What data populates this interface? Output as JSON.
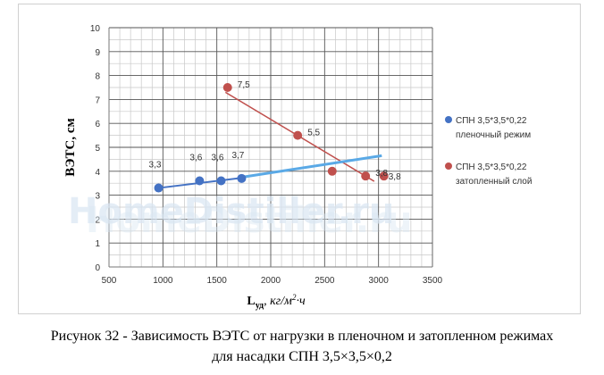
{
  "chart_data": {
    "type": "scatter",
    "xlim": [
      500,
      3500
    ],
    "ylim": [
      0,
      10
    ],
    "x_ticks": [
      "500",
      "1000",
      "1500",
      "2000",
      "2500",
      "3000",
      "3500"
    ],
    "y_ticks": [
      "0",
      "1",
      "2",
      "3",
      "4",
      "5",
      "6",
      "7",
      "8",
      "9",
      "10"
    ],
    "x_tick_step": 100,
    "y_tick_step": 0.5,
    "ylabel": "ВЭТС, см",
    "xlabel_main": "L",
    "xlabel_sub": "уд",
    "xlabel_unit": ", кг/м",
    "xlabel_sup": "2",
    "xlabel_tail": "·ч",
    "grid": true,
    "legend_position": "right",
    "series": [
      {
        "name": "СПН 3,5*3,5*0,22 пленочный режим",
        "color": "#4472c4",
        "x": [
          960,
          1340,
          1540,
          1730
        ],
        "y": [
          3.3,
          3.6,
          3.6,
          3.7
        ],
        "labels": [
          "3,3",
          "3,6",
          "3,6",
          "3,7"
        ],
        "trend_x": [
          960,
          1730
        ],
        "trend_y": [
          3.3,
          3.72
        ]
      },
      {
        "name": "СПН 3,5*3,5*0,22 затопленный слой",
        "color": "#c0504d",
        "x": [
          1600,
          2250,
          2570,
          2880,
          3050
        ],
        "y": [
          7.5,
          5.5,
          4.0,
          3.8,
          3.8
        ],
        "labels": [
          "7,5",
          "5,5",
          "",
          "3,8",
          "3,8"
        ],
        "trend_x": [
          1580,
          2960
        ],
        "trend_y": [
          7.3,
          3.58
        ]
      }
    ],
    "extension_line": {
      "color": "#5aa9e6",
      "x": [
        1730,
        3030
      ],
      "y": [
        3.75,
        4.65
      ]
    }
  },
  "legend": {
    "items": [
      {
        "line1": "СПН 3,5*3,5*0,22",
        "line2": "пленочный режим",
        "color": "#4472c4"
      },
      {
        "line1": "СПН 3,5*3,5*0,22",
        "line2": "затопленный слой",
        "color": "#c0504d"
      }
    ]
  },
  "watermark": {
    "text": "HomeDistiller.ru"
  },
  "caption": {
    "line1": "Рисунок 32 - Зависимость ВЭТС от нагрузки в пленочном и затопленном режимах",
    "line2": "для насадки СПН 3,5×3,5×0,2"
  }
}
